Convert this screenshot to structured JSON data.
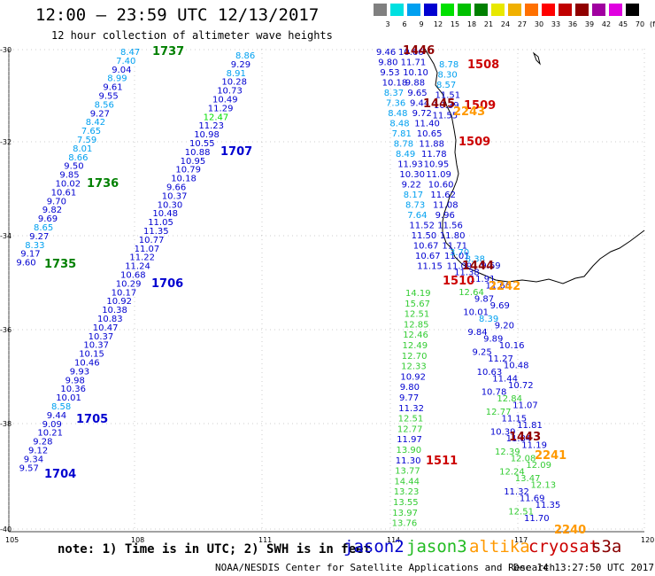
{
  "header": {
    "title": "12:00 – 23:59 UTC 12/13/2017",
    "subtitle": "12 hour collection of altimeter wave heights"
  },
  "legend": {
    "unit": "(ft)",
    "bins": [
      {
        "label": "3",
        "color": "#808080"
      },
      {
        "label": "6",
        "color": "#00e0e0"
      },
      {
        "label": "9",
        "color": "#00a0f0"
      },
      {
        "label": "12",
        "color": "#0000d0"
      },
      {
        "label": "15",
        "color": "#00e000"
      },
      {
        "label": "18",
        "color": "#00c000"
      },
      {
        "label": "21",
        "color": "#008000"
      },
      {
        "label": "24",
        "color": "#e8e800"
      },
      {
        "label": "27",
        "color": "#f0b000"
      },
      {
        "label": "30",
        "color": "#ff7000"
      },
      {
        "label": "33",
        "color": "#ff0000"
      },
      {
        "label": "36",
        "color": "#c00000"
      },
      {
        "label": "39",
        "color": "#900000"
      },
      {
        "label": "42",
        "color": "#a000a0"
      },
      {
        "label": "45",
        "color": "#e000e0"
      },
      {
        "label": "70",
        "color": "#000000"
      }
    ]
  },
  "axes": {
    "x_ticks": [
      "105",
      "108",
      "111",
      "114",
      "117",
      "120"
    ],
    "y_ticks": [
      "-30",
      "-32",
      "-34",
      "-36",
      "-38",
      "-40"
    ]
  },
  "footer": {
    "note": "note: 1) Time is in UTC; 2) SWH is in feet",
    "credit": "NOAA/NESDIS Center for Satellite Applications and Research",
    "timestamp": "Dec 14 13:27:50 UTC 2017"
  },
  "satellites": [
    {
      "name": "jason2",
      "color": "#0000cc"
    },
    {
      "name": "jason3",
      "color": "#22bb22"
    },
    {
      "name": "altika",
      "color": "#ff9900"
    },
    {
      "name": "cryosat",
      "color": "#cc0000"
    },
    {
      "name": "s3a",
      "color": "#880000"
    }
  ],
  "tracks": [
    {
      "name": "track-1737",
      "time": "1737",
      "time_color": "#008000",
      "x0": -14.8,
      "y0": -26.6,
      "dx": -0.73,
      "dy": 1.05,
      "values": [
        "8.47",
        "7.40",
        "9.04",
        "8.99",
        "9.61",
        "9.55",
        "8.56",
        "9.27",
        "8.42",
        "7.65",
        "7.59",
        "8.01",
        "8.66",
        "9.50",
        "9.85",
        "10.02",
        "10.61",
        "9.70",
        "9.82",
        "9.69",
        "8.65",
        "9.27",
        "8.33",
        "9.17",
        "9.60"
      ],
      "colors": [
        "#00a0f0",
        "#00a0f0",
        "#0000d0",
        "#00a0f0",
        "#0000d0",
        "#0000d0",
        "#00a0f0",
        "#0000d0",
        "#00a0f0",
        "#00a0f0",
        "#00a0f0",
        "#00a0f0",
        "#00a0f0",
        "#0000d0",
        "#0000d0",
        "#0000d0",
        "#0000d0",
        "#0000d0",
        "#0000d0",
        "#0000d0",
        "#00a0f0",
        "#0000d0",
        "#00a0f0",
        "#0000d0",
        "#0000d0"
      ]
    },
    {
      "name": "track-1707",
      "time": "1707",
      "time_color": "#0000d0",
      "x0": 25.6,
      "y0": -35.4,
      "dx": -0.8,
      "dy": 1.06,
      "values": [
        "8.86",
        "9.29",
        "8.91",
        "10.28",
        "10.73",
        "10.49",
        "11.29",
        "12.47",
        "11.23",
        "10.98",
        "10.55",
        "10.88",
        "10.95",
        "10.79",
        "10.18",
        "9.66",
        "10.37",
        "10.30",
        "10.48",
        "11.05",
        "11.35",
        "10.77",
        "11.07",
        "11.22",
        "11.24",
        "10.68",
        "10.29",
        "10.17",
        "10.92",
        "10.38",
        "10.83",
        "10.47",
        "10.37",
        "10.37",
        "10.15",
        "10.46",
        "9.93",
        "9.98",
        "10.36",
        "10.01",
        "8.58",
        "9.44",
        "9.09",
        "10.21",
        "9.28",
        "9.12",
        "9.34",
        "9.57"
      ],
      "colors": [
        "#00a0f0",
        "#0000d0",
        "#00a0f0",
        "#0000d0",
        "#0000d0",
        "#0000d0",
        "#0000d0",
        "#00e000",
        "#0000d0",
        "#0000d0",
        "#0000d0",
        "#0000d0",
        "#0000d0",
        "#0000d0",
        "#0000d0",
        "#0000d0",
        "#0000d0",
        "#0000d0",
        "#0000d0",
        "#0000d0",
        "#0000d0",
        "#0000d0",
        "#0000d0",
        "#0000d0",
        "#0000d0",
        "#0000d0",
        "#0000d0",
        "#0000d0",
        "#0000d0",
        "#0000d0",
        "#0000d0",
        "#0000d0",
        "#0000d0",
        "#0000d0",
        "#0000d0",
        "#0000d0",
        "#0000d0",
        "#0000d0",
        "#0000d0",
        "#0000d0",
        "#00a0f0",
        "#0000d0",
        "#0000d0",
        "#0000d0",
        "#0000d0",
        "#0000d0",
        "#0000d0",
        "#0000d0"
      ]
    },
    {
      "name": "track-1446",
      "time": "1446",
      "time_color": "#900000",
      "x0": 0.0,
      "y0": 0.0,
      "dx": 0.0,
      "dy": 0.0,
      "values": [
        "9.46",
        "10.66",
        "9.80",
        "11.71",
        "9.53",
        "10.10",
        "10.18",
        "9.88",
        "8.37",
        "9.65",
        "7.36",
        "9.44",
        "8.48",
        "9.72",
        "8.48",
        "11.40",
        "7.81",
        "10.65",
        "8.78",
        "11.88",
        "8.49",
        "11.78",
        "11.93",
        "10.95",
        "10.30",
        "11.09",
        "9.22",
        "10.60",
        "8.17",
        "11.62",
        "8.73",
        "11.08",
        "7.64",
        "9.96",
        "11.52",
        "11.56",
        "11.50",
        "11.80",
        "10.67",
        "11.71",
        "10.67",
        "11.01",
        "11.15",
        "11.09"
      ],
      "colors": []
    },
    {
      "name": "track-1508",
      "time": "1508",
      "time_color": "#cc0000",
      "x0": 0,
      "y0": 0,
      "dx": 0,
      "dy": 0,
      "values": [
        "8.78",
        "8.30",
        "8.57",
        "11.51",
        "10.39",
        "11.55"
      ],
      "colors": []
    },
    {
      "name": "track-1511",
      "time": "1511",
      "time_color": "#cc0000",
      "x0": 0,
      "y0": 0,
      "dx": 0,
      "dy": 0,
      "values": [
        "14.19",
        "15.67",
        "12.51",
        "12.85",
        "12.46",
        "12.49",
        "12.70",
        "12.33",
        "10.92",
        "9.80",
        "9.77",
        "11.32",
        "12.51",
        "12.77",
        "11.97",
        "13.90",
        "11.30",
        "13.77",
        "14.44",
        "13.23",
        "13.55",
        "13.97",
        "13.76"
      ],
      "colors": []
    },
    {
      "name": "track-1510",
      "time": "1510",
      "time_color": "#cc0000",
      "x0": 0,
      "y0": 0,
      "dx": 0,
      "dy": 0,
      "values": [
        "3.70",
        "8.38",
        "9.69",
        "11.38",
        "11.91",
        "11.66",
        "12.64",
        "9.87",
        "9.69",
        "10.01",
        "8.39",
        "9.20",
        "9.84",
        "9.89",
        "10.16",
        "9.25",
        "11.27",
        "10.48",
        "10.63",
        "11.44",
        "10.72",
        "10.78",
        "12.84",
        "11.07",
        "12.77",
        "11.15",
        "11.81",
        "10.39",
        "11.84",
        "11.19",
        "12.39",
        "12.08",
        "12.09",
        "12.24",
        "13.47",
        "12.13",
        "11.32",
        "11.69",
        "11.35",
        "12.51",
        "11.70"
      ],
      "colors": []
    }
  ],
  "track_labels": [
    {
      "text": "1737",
      "color": "#008000"
    },
    {
      "text": "1736",
      "color": "#008000"
    },
    {
      "text": "1735",
      "color": "#008000"
    },
    {
      "text": "1707",
      "color": "#0000d0"
    },
    {
      "text": "1706",
      "color": "#0000d0"
    },
    {
      "text": "1705",
      "color": "#0000d0"
    },
    {
      "text": "1704",
      "color": "#0000d0"
    },
    {
      "text": "1446",
      "color": "#900000"
    },
    {
      "text": "1508",
      "color": "#cc0000"
    },
    {
      "text": "1509",
      "color": "#cc0000"
    },
    {
      "text": "1509",
      "color": "#cc0000"
    },
    {
      "text": "1445",
      "color": "#900000"
    },
    {
      "text": "2243",
      "color": "#ff9900"
    },
    {
      "text": "1444",
      "color": "#900000"
    },
    {
      "text": "1510",
      "color": "#cc0000"
    },
    {
      "text": "2242",
      "color": "#ff9900"
    },
    {
      "text": "1443",
      "color": "#900000"
    },
    {
      "text": "2241",
      "color": "#ff9900"
    },
    {
      "text": "1511",
      "color": "#cc0000"
    },
    {
      "text": "2240",
      "color": "#ff9900"
    }
  ]
}
